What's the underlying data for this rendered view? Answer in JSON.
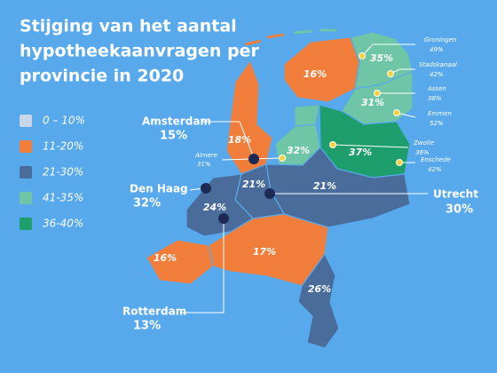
{
  "title": [
    "Stijging van het aantal",
    "hypotheekaanvragen per",
    "provincie in 2020"
  ],
  "legend": [
    {
      "label": "0 – 10%",
      "color": "#c9d5e8"
    },
    {
      "label": "11-20%",
      "color": "#f07d3a"
    },
    {
      "label": "21-30%",
      "color": "#4a6c9b"
    },
    {
      "label": "41-35%",
      "color": "#6fc6a6"
    },
    {
      "label": "36-40%",
      "color": "#1e9d6d"
    }
  ],
  "provinces": [
    "16%",
    "35%",
    "31%",
    "18%",
    "32%",
    "37%",
    "21%",
    "21%",
    "24%",
    "16%",
    "17%",
    "26%"
  ],
  "major_cities": [
    {
      "name": "Amsterdam",
      "value": "15%"
    },
    {
      "name": "Den Haag",
      "value": "32%"
    },
    {
      "name": "Utrecht",
      "value": "30%"
    },
    {
      "name": "Rotterdam",
      "value": "13%"
    }
  ],
  "minor_cities": [
    {
      "name": "Almere",
      "value": "31%"
    },
    {
      "name": "Groningen",
      "value": "49%"
    },
    {
      "name": "Stadskanaal",
      "value": "42%"
    },
    {
      "name": "Assen",
      "value": "38%"
    },
    {
      "name": "Emmen",
      "value": "52%"
    },
    {
      "name": "Zwolle",
      "value": "36%"
    },
    {
      "name": "Enschede",
      "value": "42%"
    }
  ]
}
